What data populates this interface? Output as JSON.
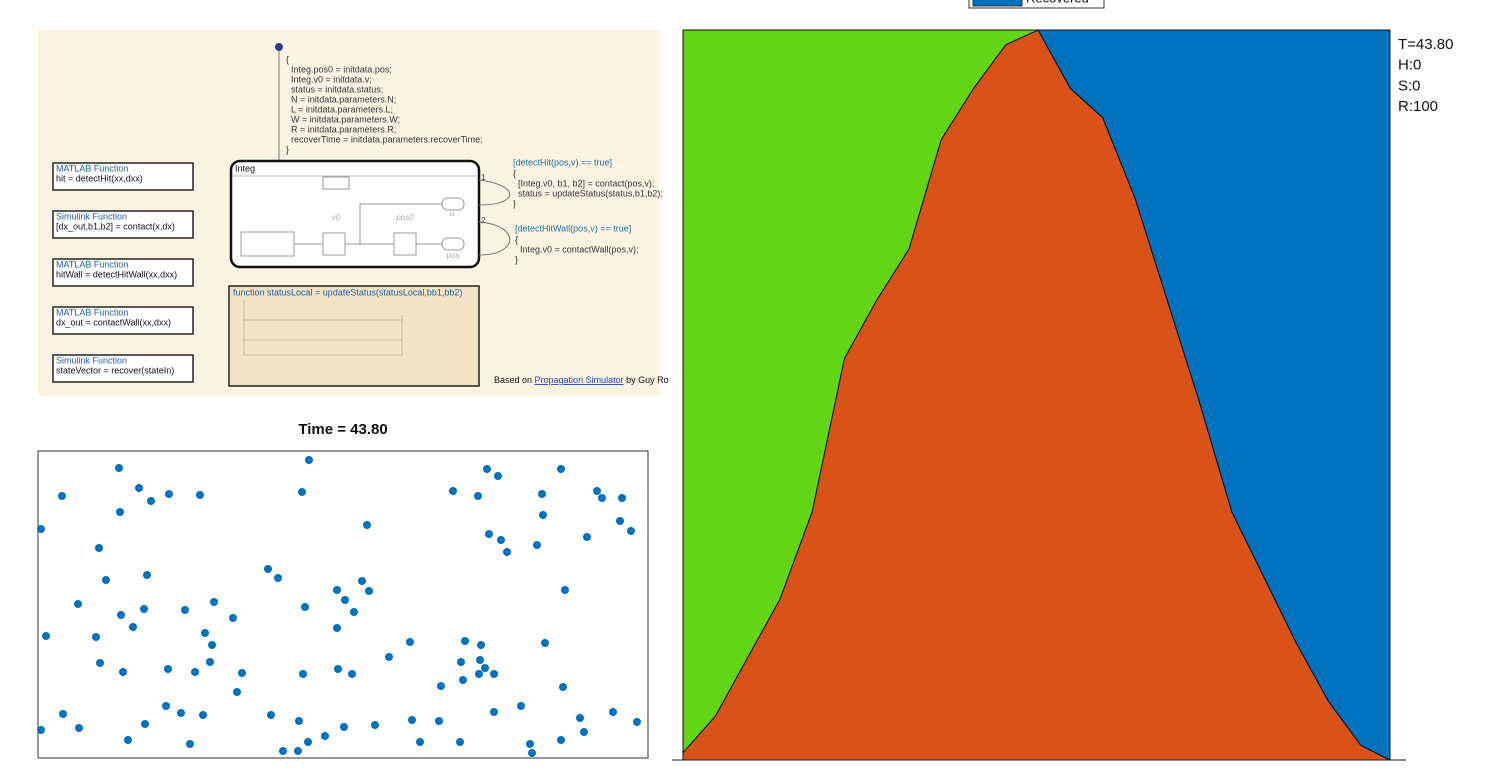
{
  "diagram": {
    "init_code": [
      "{",
      "Integ.pos0 = initdata.pos;",
      "Integ.v0 = initdata.v;",
      "status = initdata.status;",
      "N = initdata.parameters.N;",
      "L = initdata.parameters.L;",
      "W = initdata.parameters.W;",
      "R = initdata.parameters.R;",
      "recoverTime = initdata.parameters.recoverTime;",
      "}"
    ],
    "functions": [
      {
        "kind": "MATLAB Function",
        "signature": "hit = detectHit(xx,dxx)"
      },
      {
        "kind": "Simulink Function",
        "signature": "[dx_out,b1,b2] = contact(x,dx)"
      },
      {
        "kind": "MATLAB Function",
        "signature": "hitWall = detectHitWall(xx,dxx)"
      },
      {
        "kind": "MATLAB Function",
        "signature": "dx_out = contactWall(xx,dxx)"
      },
      {
        "kind": "Simulink Function",
        "signature": "stateVector = recover(stateIn)"
      }
    ],
    "chart": {
      "name": "Integ",
      "labels": [
        "v0",
        "pos0",
        "u",
        "pos"
      ]
    },
    "transitions": [
      {
        "order": "1",
        "guard": "[detectHit(pos,v) == true]",
        "body": [
          "{",
          "[Integ.v0, b1, b2] = contact(pos,v);",
          "status = updateStatus(status,b1,b2);",
          "}"
        ]
      },
      {
        "order": "2",
        "guard": "[detectHitWall(pos,v) == true]",
        "body": [
          "{",
          "Integ.v0 = contactWall(pos,v);",
          "}"
        ]
      }
    ],
    "update_function": "function  statusLocal = updateStatus(statusLocal,bb1,bb2)",
    "credit": {
      "prefix": "Based on ",
      "link": "Propagation Simulator",
      "suffix": " by Guy Ro"
    }
  },
  "status": [
    "T=43.80",
    "H:0",
    "S:0",
    "R:100"
  ],
  "chart_data": [
    {
      "type": "scatter",
      "title": "Time = 43.80",
      "color": "#0072bd",
      "xlim": [
        0,
        610
      ],
      "ylim": [
        0,
        307
      ],
      "x": [
        81,
        271,
        449,
        460,
        523,
        24,
        101,
        113,
        131,
        162,
        264,
        415,
        440,
        504,
        559,
        564,
        584,
        82,
        329,
        505,
        582,
        593,
        3,
        451,
        463,
        469,
        499,
        549,
        61,
        230,
        240,
        109,
        68,
        324,
        331,
        527,
        299,
        40,
        83,
        106,
        147,
        176,
        195,
        267,
        307,
        316,
        95,
        299,
        8,
        58,
        167,
        174,
        372,
        427,
        443,
        507,
        351,
        423,
        442,
        447,
        62,
        85,
        130,
        172,
        157,
        204,
        265,
        300,
        314,
        441,
        456,
        403,
        425,
        525,
        199,
        25,
        41,
        3,
        107,
        128,
        143,
        165,
        233,
        261,
        306,
        337,
        374,
        401,
        456,
        483,
        542,
        575,
        599,
        90,
        152,
        245,
        260,
        270,
        287,
        382,
        422,
        492,
        494,
        523,
        546
      ],
      "values": [
        290,
        298,
        289,
        282,
        289,
        262,
        270,
        257,
        264,
        263,
        266,
        267,
        262,
        264,
        267,
        260,
        260,
        246,
        233,
        243,
        237,
        227,
        229,
        224,
        218,
        206,
        213,
        221,
        210,
        189,
        180,
        183,
        178,
        177,
        167,
        168,
        168,
        154,
        143,
        149,
        148,
        156,
        140,
        151,
        158,
        146,
        131,
        130,
        122,
        121,
        125,
        113,
        116,
        117,
        113,
        115,
        101,
        96,
        98,
        90,
        95,
        86,
        89,
        96,
        86,
        85,
        84,
        89,
        84,
        84,
        84,
        72,
        78,
        71,
        66,
        44,
        30,
        28,
        34,
        52,
        45,
        43,
        43,
        37,
        31,
        33,
        38,
        37,
        46,
        52,
        40,
        46,
        36,
        18,
        14,
        7,
        7,
        16,
        22,
        16,
        16,
        14,
        5,
        18,
        26
      ]
    },
    {
      "type": "area",
      "stacked": true,
      "x": [
        0,
        2,
        4,
        6,
        8,
        10,
        12,
        14,
        16,
        18,
        20,
        22,
        24,
        26,
        28,
        30,
        32,
        34,
        36,
        38,
        40,
        42,
        43.8
      ],
      "xlim": [
        0,
        43.8
      ],
      "ylim": [
        0,
        100
      ],
      "series": [
        {
          "color": "#d95319",
          "values": [
            1,
            6,
            14,
            22,
            34,
            55,
            63,
            70,
            85,
            92,
            98,
            100,
            92,
            88,
            77,
            63,
            49,
            34,
            25,
            16,
            8,
            2,
            0
          ]
        },
        {
          "color": "#62d515",
          "values": [
            99,
            94,
            86,
            78,
            66,
            45,
            37,
            30,
            15,
            8,
            2,
            0,
            0,
            0,
            0,
            0,
            0,
            0,
            0,
            0,
            0,
            0,
            0
          ]
        },
        {
          "name": "Recovered",
          "color": "#0072bd",
          "values": [
            0,
            0,
            0,
            0,
            0,
            0,
            0,
            0,
            0,
            0,
            0,
            0,
            8,
            12,
            23,
            37,
            51,
            66,
            75,
            84,
            92,
            98,
            100
          ]
        }
      ]
    }
  ]
}
